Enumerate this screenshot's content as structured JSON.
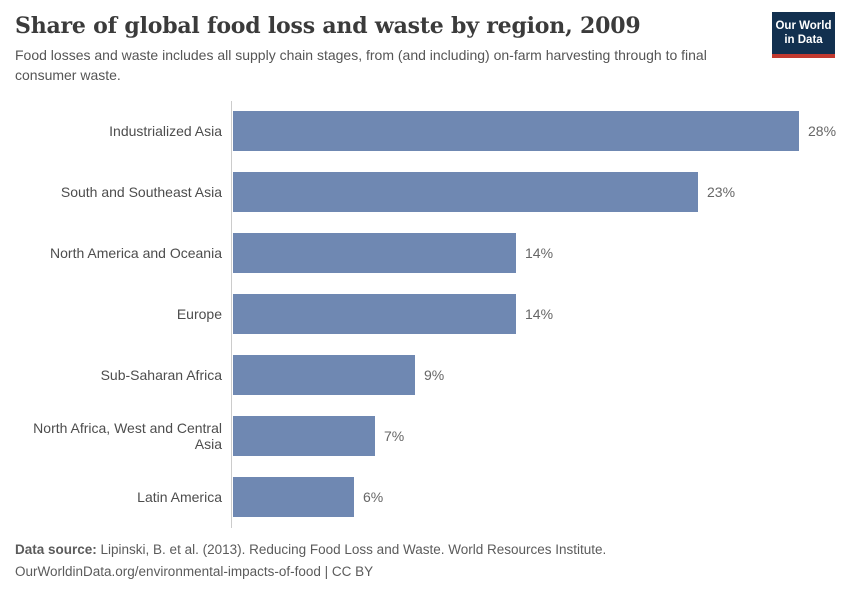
{
  "header": {
    "title": "Share of global food loss and waste by region, 2009",
    "subtitle_line1": "Food losses and waste includes all supply chain stages, from (and including) on-farm harvesting through to final",
    "subtitle_line2": "consumer waste.",
    "logo": {
      "line1": "Our World",
      "line2": "in Data",
      "bg_color": "#12304f",
      "accent_color": "#c2392f"
    }
  },
  "chart_data": {
    "type": "bar",
    "orientation": "horizontal",
    "title": "Share of global food loss and waste by region, 2009",
    "categories": [
      "Industrialized Asia",
      "South and Southeast Asia",
      "North America and Oceania",
      "Europe",
      "Sub-Saharan Africa",
      "North Africa, West and Central Asia",
      "Latin America"
    ],
    "values": [
      28,
      23,
      14,
      14,
      9,
      7,
      6
    ],
    "value_labels": [
      "28%",
      "23%",
      "14%",
      "14%",
      "9%",
      "7%",
      "6%"
    ],
    "value_suffix": "%",
    "xlabel": "",
    "ylabel": "",
    "xlim": [
      0,
      28
    ],
    "grid": false,
    "legend": "none",
    "bar_color": "#6f88b2",
    "axis_color": "#cccccc",
    "label_color": "#4d4d4d",
    "value_color": "#666666"
  },
  "footer": {
    "source_label": "Data source:",
    "source_text": " Lipinski, B. et al. (2013). Reducing Food Loss and Waste. World Resources Institute.",
    "link_line": "OurWorldinData.org/environmental-impacts-of-food | CC BY"
  }
}
